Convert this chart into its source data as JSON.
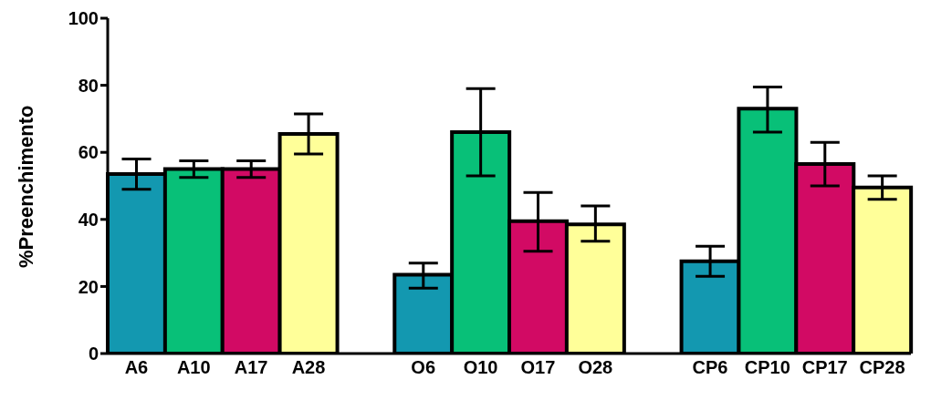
{
  "chart_data": {
    "type": "bar",
    "ylabel": "%Preenchimento",
    "categories": [
      "A6",
      "A10",
      "A17",
      "A28",
      null,
      "O6",
      "O10",
      "O17",
      "O28",
      null,
      "CP6",
      "CP10",
      "CP17",
      "CP28"
    ],
    "values": [
      53.5,
      55,
      55,
      65.5,
      null,
      23.5,
      66,
      39.5,
      38.5,
      null,
      27.5,
      73,
      56.5,
      49.5
    ],
    "colors": [
      "#1398b0",
      "#08c078",
      "#d20a64",
      "#ffff99",
      null,
      "#1398b0",
      "#08c078",
      "#d20a64",
      "#ffff99",
      null,
      "#1398b0",
      "#08c078",
      "#d20a64",
      "#ffff99"
    ],
    "errors": [
      [
        49,
        58
      ],
      [
        52.5,
        57.5
      ],
      [
        52.5,
        57.5
      ],
      [
        59.5,
        71.5
      ],
      null,
      [
        19.5,
        27
      ],
      [
        53,
        79
      ],
      [
        30.5,
        48
      ],
      [
        33.5,
        44
      ],
      null,
      [
        23,
        32
      ],
      [
        66,
        79.5
      ],
      [
        50,
        63
      ],
      [
        46,
        53
      ]
    ],
    "ylim": [
      0,
      100
    ],
    "yticks": [
      0,
      20,
      40,
      60,
      80,
      100
    ],
    "grid": false,
    "legend": false
  }
}
